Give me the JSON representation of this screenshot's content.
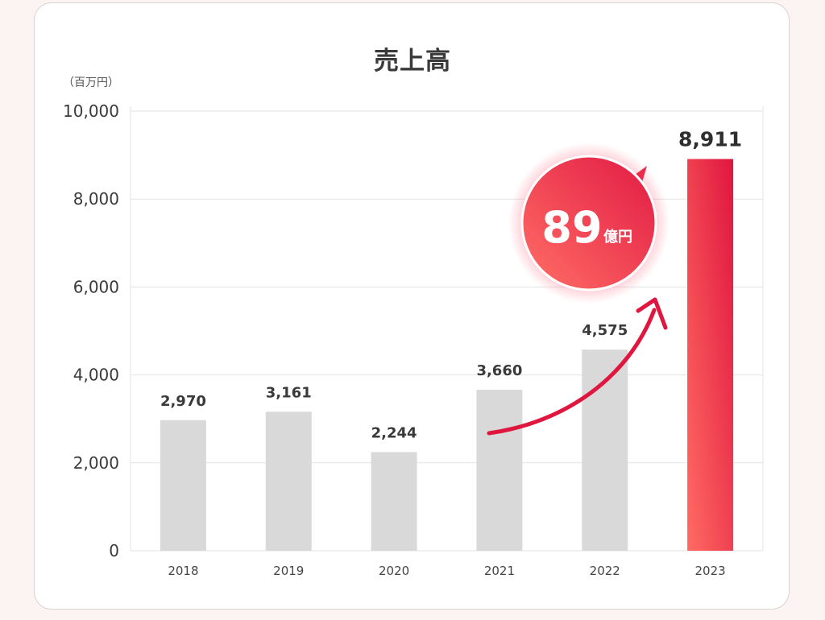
{
  "chart_data": {
    "type": "bar",
    "title": "売上高",
    "unit": "（百万円）",
    "categories": [
      "2018",
      "2019",
      "2020",
      "2021",
      "2022",
      "2023"
    ],
    "values": [
      2970,
      3161,
      2244,
      3660,
      4575,
      8911
    ],
    "value_labels": [
      "2,970",
      "3,161",
      "2,244",
      "3,660",
      "4,575",
      "8,911"
    ],
    "ylim": [
      0,
      10000
    ],
    "yticks": [
      0,
      2000,
      4000,
      6000,
      8000,
      10000
    ],
    "ytick_labels": [
      "0",
      "2,000",
      "4,000",
      "6,000",
      "8,000",
      "10,000"
    ],
    "grid": true,
    "highlight_index": 5,
    "annotation": {
      "value": "89",
      "unit": "億円"
    }
  },
  "colors": {
    "bar": "#d9d9d9",
    "highlight_start": "#ff6b63",
    "highlight_end": "#e0163f",
    "arrow": "#e0163f",
    "grid": "#e3e3e3"
  }
}
